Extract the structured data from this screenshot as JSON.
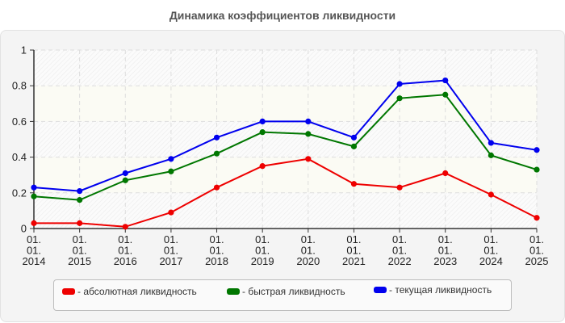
{
  "chart_data": {
    "type": "line",
    "title": "Динамика коэффициентов ликвидности",
    "xlabel": "",
    "ylabel": "",
    "ylim": [
      0,
      1
    ],
    "yticks": [
      "0",
      "0.2",
      "0.4",
      "0.6",
      "0.8",
      "1"
    ],
    "categories": [
      "01.01.2014",
      "01.01.2015",
      "01.01.2016",
      "01.01.2017",
      "01.01.2018",
      "01.01.2019",
      "01.01.2020",
      "01.01.2021",
      "01.01.2022",
      "01.01.2023",
      "01.01.2024",
      "01.01.2025"
    ],
    "x_tick_lines": [
      [
        "01.",
        "01.",
        "2014"
      ],
      [
        "01.",
        "01.",
        "2015"
      ],
      [
        "01.",
        "01.",
        "2016"
      ],
      [
        "01.",
        "01.",
        "2017"
      ],
      [
        "01.",
        "01.",
        "2018"
      ],
      [
        "01.",
        "01.",
        "2019"
      ],
      [
        "01.",
        "01.",
        "2020"
      ],
      [
        "01.",
        "01.",
        "2021"
      ],
      [
        "01.",
        "01.",
        "2022"
      ],
      [
        "01.",
        "01.",
        "2023"
      ],
      [
        "01.",
        "01.",
        "2024"
      ],
      [
        "01.",
        "01.",
        "2025"
      ]
    ],
    "series": [
      {
        "name": "- абсолютная ликвидность",
        "color": "#ee0000",
        "values": [
          0.03,
          0.03,
          0.01,
          0.09,
          0.23,
          0.35,
          0.39,
          0.25,
          0.23,
          0.31,
          0.19,
          0.06
        ]
      },
      {
        "name": "- быстрая ликвидность",
        "color": "#007700",
        "values": [
          0.18,
          0.16,
          0.27,
          0.32,
          0.42,
          0.54,
          0.53,
          0.46,
          0.73,
          0.75,
          0.41,
          0.33
        ]
      },
      {
        "name": "- текущая ликвидность",
        "color": "#0000ee",
        "values": [
          0.23,
          0.21,
          0.31,
          0.39,
          0.51,
          0.6,
          0.6,
          0.51,
          0.81,
          0.83,
          0.48,
          0.44
        ]
      }
    ],
    "grid": true,
    "legend_position": "bottom"
  },
  "legend": {
    "items": [
      {
        "label": "- абсолютная ликвидность",
        "color": "#ee0000"
      },
      {
        "label": "- быстрая ликвидность",
        "color": "#007700"
      },
      {
        "label": "- текущая ликвидность",
        "color": "#0000ee"
      }
    ]
  }
}
